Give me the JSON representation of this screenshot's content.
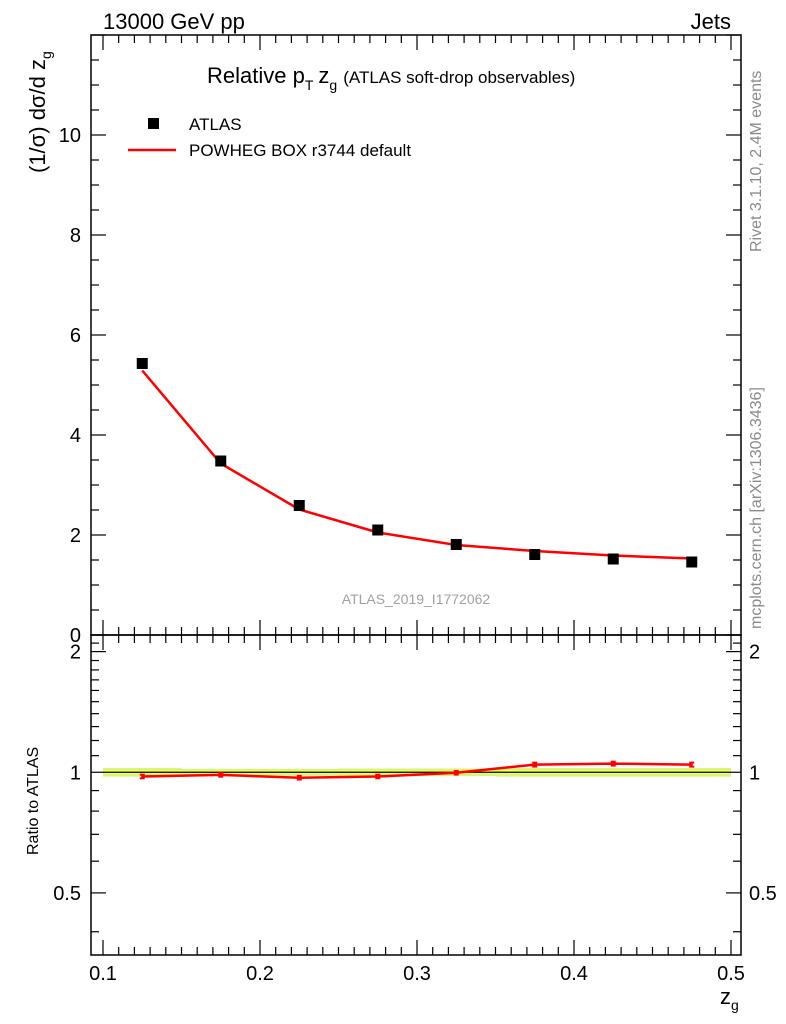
{
  "header": {
    "left": "13000 GeV pp",
    "right": "Jets"
  },
  "side_labels": {
    "rivet": "Rivet 3.1.10,  2.4M events",
    "mcplots": "mcplots.cern.ch [arXiv:1306.3436]"
  },
  "watermark": "ATLAS_2019_I1772062",
  "colors": {
    "data": "#000000",
    "mc": "#ff0000",
    "band": "#d8f57a",
    "band_inner": "#f0ff60",
    "side_text": "#8a8a8a"
  },
  "chart_data": [
    {
      "type": "line",
      "title": "Relative p",
      "title_sub": "T",
      "title_var": "z",
      "title_var_sub": "g",
      "title_tail": "(ATLAS soft-drop observables)",
      "ylabel": "(1/σ) dσ/d z",
      "ylabel_sub": "g",
      "xlim": [
        0.092,
        0.5
      ],
      "ylim": [
        0,
        12
      ],
      "yticks": [
        0,
        2,
        4,
        6,
        8,
        10
      ],
      "ytick_labels": [
        "0",
        "2",
        "4",
        "6",
        "8",
        "10"
      ],
      "legend": {
        "placement": "top-left",
        "data_label": "ATLAS",
        "mc_label": "POWHEG BOX r3744 default"
      },
      "x": [
        0.125,
        0.175,
        0.225,
        0.275,
        0.325,
        0.375,
        0.425,
        0.475
      ],
      "series": [
        {
          "name": "ATLAS",
          "style": "markers",
          "values": [
            5.43,
            3.48,
            2.59,
            2.1,
            1.81,
            1.61,
            1.52,
            1.46
          ]
        },
        {
          "name": "POWHEG BOX r3744 default",
          "style": "line",
          "values": [
            5.29,
            3.43,
            2.51,
            2.05,
            1.8,
            1.68,
            1.59,
            1.53
          ]
        }
      ]
    },
    {
      "type": "line",
      "ylabel": "Ratio to ATLAS",
      "xlabel": "z",
      "xlabel_sub": "g",
      "xlim": [
        0.092,
        0.5
      ],
      "ylim": [
        0.35,
        2.2
      ],
      "xticks": [
        0.1,
        0.2,
        0.3,
        0.4,
        0.5
      ],
      "xtick_labels": [
        "0.1",
        "0.2",
        "0.3",
        "0.4",
        "0.5"
      ],
      "yticks": [
        0.5,
        1,
        2
      ],
      "ytick_labels": [
        "0.5",
        "1",
        "2"
      ],
      "x": [
        0.125,
        0.175,
        0.225,
        0.275,
        0.325,
        0.375,
        0.425,
        0.475
      ],
      "band": {
        "lower": [
          0.975,
          0.98,
          0.98,
          0.978,
          0.978,
          0.975,
          0.975,
          0.975
        ],
        "upper": [
          1.025,
          1.02,
          1.02,
          1.022,
          1.022,
          1.025,
          1.025,
          1.025
        ]
      },
      "series": [
        {
          "name": "POWHEG BOX r3744 default",
          "values": [
            0.976,
            0.985,
            0.969,
            0.976,
            0.997,
            1.045,
            1.051,
            1.045
          ],
          "err": [
            0.01,
            0.01,
            0.01,
            0.01,
            0.01,
            0.012,
            0.012,
            0.012
          ]
        }
      ]
    }
  ]
}
